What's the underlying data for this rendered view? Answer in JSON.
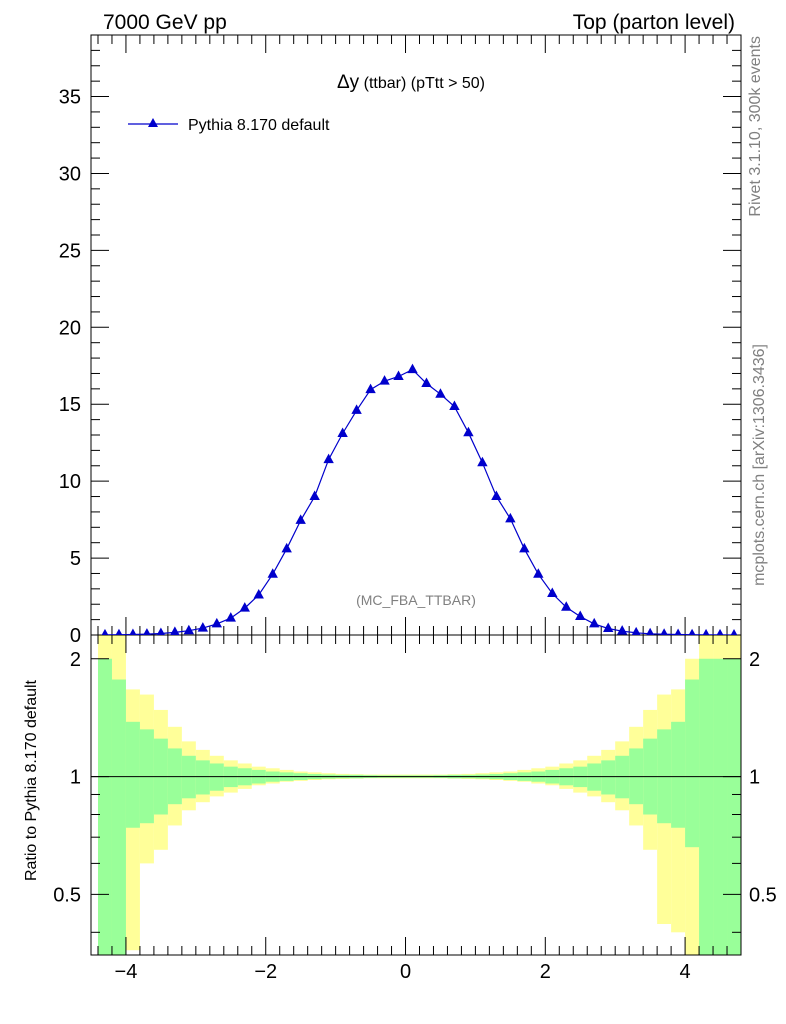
{
  "header": {
    "left": "7000 GeV pp",
    "right": "Top (parton level)"
  },
  "side": {
    "rivet": "Rivet 3.1.10,  300k events",
    "mcplots": "mcplots.cern.ch [arXiv:1306.3436]"
  },
  "watermark": "(MC_FBA_TTBAR)",
  "colors": {
    "series": "#0000cc",
    "band_inner": "#99ff99",
    "band_outer": "#ffff99"
  },
  "chart_data": [
    {
      "type": "line",
      "title_main": "Δy",
      "title_rest": " (ttbar) (pTtt > 50)",
      "xlabel": "",
      "ylabel": "",
      "xlim": [
        -4.5,
        4.8
      ],
      "ylim": [
        0,
        39
      ],
      "yticks": [
        0,
        5,
        10,
        15,
        20,
        25,
        30,
        35
      ],
      "ytick_labels": [
        "0",
        "5",
        "10",
        "15",
        "20",
        "25",
        "30",
        "35"
      ],
      "legend_position": "top-left",
      "series": [
        {
          "name": "Pythia 8.170 default",
          "marker": "triangle",
          "x": [
            -4.3,
            -4.1,
            -3.9,
            -3.7,
            -3.5,
            -3.3,
            -3.1,
            -2.9,
            -2.7,
            -2.5,
            -2.3,
            -2.1,
            -1.9,
            -1.7,
            -1.5,
            -1.3,
            -1.1,
            -0.9,
            -0.7,
            -0.5,
            -0.3,
            -0.1,
            0.1,
            0.3,
            0.5,
            0.7,
            0.9,
            1.1,
            1.3,
            1.5,
            1.7,
            1.9,
            2.1,
            2.3,
            2.5,
            2.7,
            2.9,
            3.1,
            3.3,
            3.5,
            3.7,
            3.9,
            4.1,
            4.3,
            4.5,
            4.7
          ],
          "y": [
            0.01,
            0.02,
            0.03,
            0.06,
            0.1,
            0.17,
            0.28,
            0.45,
            0.72,
            1.1,
            1.75,
            2.6,
            3.95,
            5.6,
            7.45,
            9.0,
            11.4,
            13.1,
            14.6,
            15.95,
            16.5,
            16.8,
            17.25,
            16.35,
            15.65,
            14.85,
            13.15,
            11.2,
            9.0,
            7.55,
            5.6,
            3.95,
            2.7,
            1.8,
            1.2,
            0.72,
            0.42,
            0.25,
            0.14,
            0.08,
            0.05,
            0.03,
            0.02,
            0.01,
            0.01,
            0.0
          ]
        }
      ]
    },
    {
      "type": "area",
      "xlabel": "",
      "ylabel": "Ratio to Pythia 8.170 default",
      "xlim": [
        -4.5,
        4.8
      ],
      "ylim": [
        0.35,
        2.3
      ],
      "yscale": "log",
      "reference": 1,
      "yticks": [
        0.5,
        1,
        2
      ],
      "ytick_labels": [
        "0.5",
        "1",
        "2"
      ],
      "xticks": [
        -4,
        -2,
        0,
        2,
        4
      ],
      "xtick_labels": [
        "−4",
        "−2",
        "0",
        "2",
        "4"
      ],
      "bin_edges": [
        -4.4,
        -4.2,
        -4.0,
        -3.8,
        -3.6,
        -3.4,
        -3.2,
        -3.0,
        -2.8,
        -2.6,
        -2.4,
        -2.2,
        -2.0,
        -1.8,
        -1.6,
        -1.4,
        -1.2,
        -1.0,
        -0.8,
        -0.6,
        -0.4,
        -0.2,
        0.0,
        0.2,
        0.4,
        0.6,
        0.8,
        1.0,
        1.2,
        1.4,
        1.6,
        1.8,
        2.0,
        2.2,
        2.4,
        2.6,
        2.8,
        3.0,
        3.2,
        3.4,
        3.6,
        3.8,
        4.0,
        4.2,
        4.4,
        4.6,
        4.8
      ],
      "bands": [
        {
          "name": "",
          "color": "#99ff99",
          "lower": [
            0.3,
            0.3,
            0.74,
            0.76,
            0.8,
            0.85,
            0.88,
            0.9,
            0.92,
            0.94,
            0.95,
            0.96,
            0.97,
            0.975,
            0.98,
            0.985,
            0.988,
            0.99,
            0.99,
            0.992,
            0.993,
            0.993,
            0.993,
            0.993,
            0.992,
            0.99,
            0.99,
            0.988,
            0.985,
            0.98,
            0.975,
            0.97,
            0.96,
            0.95,
            0.94,
            0.92,
            0.9,
            0.88,
            0.85,
            0.8,
            0.76,
            0.74,
            0.66,
            0.3,
            0.3,
            0.3
          ],
          "upper": [
            2.0,
            1.77,
            1.38,
            1.32,
            1.25,
            1.18,
            1.13,
            1.1,
            1.08,
            1.06,
            1.05,
            1.04,
            1.03,
            1.025,
            1.02,
            1.015,
            1.012,
            1.01,
            1.01,
            1.008,
            1.007,
            1.007,
            1.007,
            1.007,
            1.008,
            1.01,
            1.01,
            1.012,
            1.015,
            1.02,
            1.025,
            1.03,
            1.04,
            1.05,
            1.06,
            1.08,
            1.1,
            1.13,
            1.18,
            1.25,
            1.32,
            1.38,
            1.77,
            2.0,
            2.0,
            2.0
          ]
        },
        {
          "name": "",
          "color": "#ffff99",
          "lower": [
            0.3,
            0.3,
            0.36,
            0.6,
            0.65,
            0.75,
            0.82,
            0.86,
            0.89,
            0.91,
            0.93,
            0.95,
            0.96,
            0.97,
            0.975,
            0.98,
            0.984,
            0.986,
            0.988,
            0.99,
            0.99,
            0.99,
            0.99,
            0.99,
            0.99,
            0.988,
            0.986,
            0.984,
            0.98,
            0.975,
            0.97,
            0.96,
            0.95,
            0.93,
            0.91,
            0.89,
            0.86,
            0.82,
            0.75,
            0.65,
            0.42,
            0.4,
            0.34,
            0.3,
            0.3,
            0.3
          ],
          "upper": [
            2.4,
            2.4,
            1.67,
            1.62,
            1.48,
            1.34,
            1.23,
            1.17,
            1.13,
            1.1,
            1.08,
            1.06,
            1.05,
            1.04,
            1.03,
            1.025,
            1.02,
            1.016,
            1.014,
            1.012,
            1.012,
            1.012,
            1.012,
            1.012,
            1.012,
            1.014,
            1.016,
            1.02,
            1.025,
            1.03,
            1.04,
            1.05,
            1.06,
            1.08,
            1.1,
            1.13,
            1.17,
            1.23,
            1.34,
            1.48,
            1.62,
            1.67,
            2.0,
            2.4,
            2.4,
            2.4
          ]
        }
      ]
    }
  ]
}
